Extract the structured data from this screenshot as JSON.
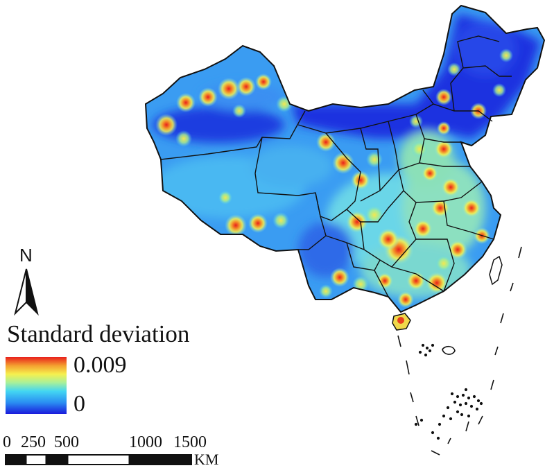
{
  "map": {
    "region": "China",
    "colors": {
      "low": "#1a2fe0",
      "low_mid": "#2a9cf0",
      "mid": "#4fd6f0",
      "mid_high": "#f2f04a",
      "high": "#e8201c",
      "boundary": "#111111"
    }
  },
  "legend": {
    "title": "Standard deviation",
    "max_label": "0.009",
    "min_label": "0",
    "max_value": 0.009,
    "min_value": 0,
    "colormap": [
      "#1a1adc",
      "#2a8ef2",
      "#43d6f2",
      "#a8f09a",
      "#f6f04e",
      "#f4a030",
      "#e8201c"
    ]
  },
  "north_arrow": {
    "label": "N",
    "icon": "north-arrow-icon"
  },
  "scale_bar": {
    "ticks": [
      "0",
      "250",
      "500",
      "1000",
      "1500"
    ],
    "unit": "KM"
  }
}
